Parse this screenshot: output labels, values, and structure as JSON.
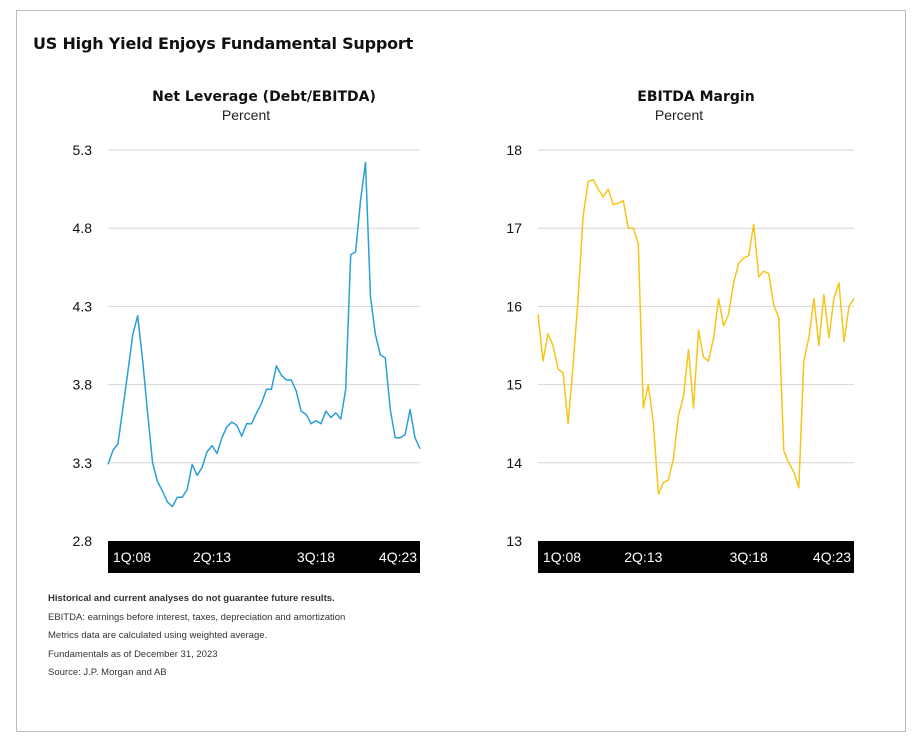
{
  "title": "US High Yield Enjoys Fundamental Support",
  "notes": {
    "disclaimer": "Historical and current analyses do not guarantee future results.",
    "definition": "EBITDA: earnings before interest, taxes, depreciation and amortization",
    "methodology": "Metrics data are calculated using weighted average.",
    "as_of": "Fundamentals as of December 31, 2023",
    "source": "Source: J.P. Morgan and AB"
  },
  "chart_data": [
    {
      "type": "line",
      "title": "Net Leverage (Debt/EBITDA)",
      "subtitle": "Percent",
      "color": "#2a9fd6",
      "ylim": [
        2.8,
        5.3
      ],
      "yticks": [
        "5.3",
        "4.8",
        "4.3",
        "3.8",
        "3.3",
        "2.8"
      ],
      "ytick_values": [
        5.3,
        4.8,
        4.3,
        3.8,
        3.3,
        2.8
      ],
      "xtick_labels": [
        "1Q:08",
        "2Q:13",
        "3Q:18",
        "4Q:23"
      ],
      "xtick_positions": [
        0,
        21,
        42,
        63
      ],
      "grid": true,
      "series": [
        {
          "values": [
            3.29,
            3.38,
            3.42,
            3.65,
            3.88,
            4.12,
            4.24,
            3.95,
            3.62,
            3.3,
            3.18,
            3.12,
            3.05,
            3.02,
            3.08,
            3.08,
            3.13,
            3.29,
            3.22,
            3.27,
            3.37,
            3.41,
            3.36,
            3.46,
            3.53,
            3.56,
            3.54,
            3.47,
            3.55,
            3.55,
            3.62,
            3.68,
            3.77,
            3.77,
            3.92,
            3.86,
            3.83,
            3.83,
            3.76,
            3.63,
            3.61,
            3.55,
            3.57,
            3.55,
            3.63,
            3.59,
            3.62,
            3.58,
            3.77,
            4.63,
            4.65,
            4.98,
            5.22,
            4.36,
            4.12,
            3.99,
            3.97,
            3.64,
            3.46,
            3.46,
            3.48,
            3.64,
            3.46,
            3.39
          ]
        }
      ]
    },
    {
      "type": "line",
      "title": "EBITDA Margin",
      "subtitle": "Percent",
      "color": "#f5c518",
      "ylim": [
        13,
        18
      ],
      "yticks": [
        "18",
        "17",
        "16",
        "15",
        "14",
        "13"
      ],
      "ytick_values": [
        18,
        17,
        16,
        15,
        14,
        13
      ],
      "xtick_labels": [
        "1Q:08",
        "2Q:13",
        "3Q:18",
        "4Q:23"
      ],
      "xtick_positions": [
        0,
        21,
        42,
        63
      ],
      "grid": true,
      "series": [
        {
          "values": [
            15.9,
            15.3,
            15.65,
            15.5,
            15.2,
            15.15,
            14.5,
            15.25,
            16.1,
            17.15,
            17.6,
            17.62,
            17.5,
            17.4,
            17.5,
            17.3,
            17.32,
            17.35,
            17.0,
            17.0,
            16.8,
            14.7,
            15.0,
            14.5,
            13.6,
            13.75,
            13.78,
            14.05,
            14.6,
            14.85,
            15.45,
            14.7,
            15.7,
            15.35,
            15.3,
            15.6,
            16.1,
            15.75,
            15.9,
            16.3,
            16.55,
            16.62,
            16.65,
            17.05,
            16.38,
            16.45,
            16.42,
            16.02,
            15.85,
            14.15,
            14.0,
            13.88,
            13.68,
            15.3,
            15.6,
            16.1,
            15.5,
            16.15,
            15.6,
            16.1,
            16.3,
            15.55,
            16.0,
            16.1
          ]
        }
      ]
    }
  ]
}
